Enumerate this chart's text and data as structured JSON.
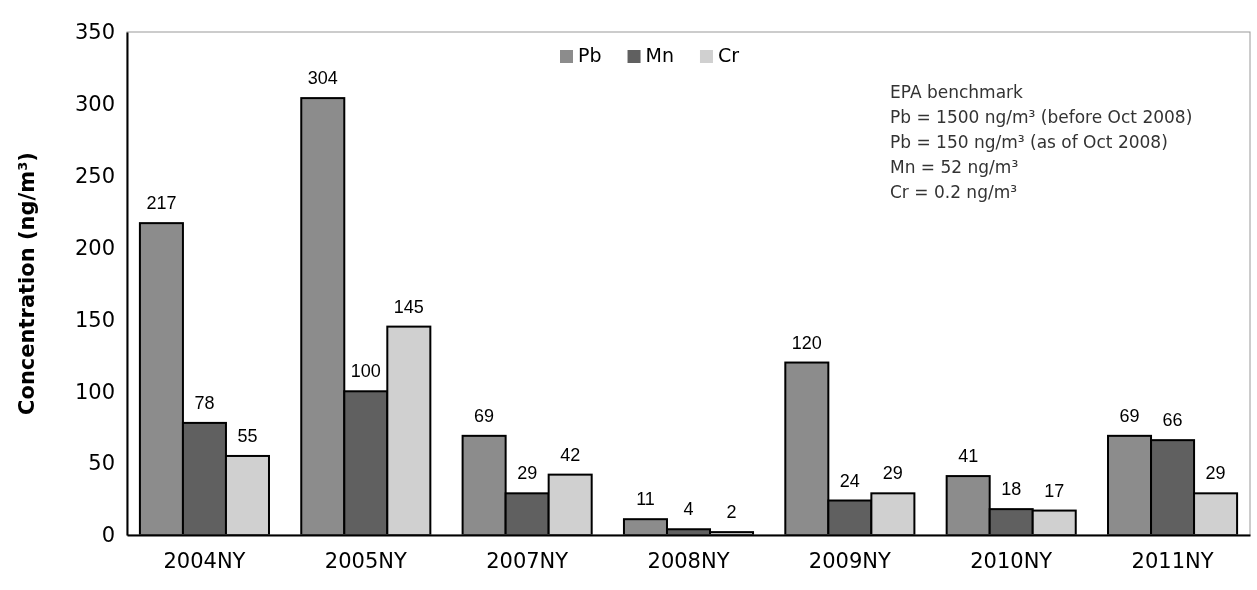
{
  "chart_data": {
    "type": "bar",
    "ylabel": "Concentration (ng/m³)",
    "categories": [
      "2004NY",
      "2005NY",
      "2007NY",
      "2008NY",
      "2009NY",
      "2010NY",
      "2011NY"
    ],
    "series": [
      {
        "name": "Pb",
        "color": "#8c8c8c",
        "values": [
          217,
          304,
          69,
          11,
          120,
          41,
          69
        ]
      },
      {
        "name": "Mn",
        "color": "#606060",
        "values": [
          78,
          100,
          29,
          4,
          24,
          18,
          66
        ]
      },
      {
        "name": "Cr",
        "color": "#d0d0d0",
        "values": [
          55,
          145,
          42,
          2,
          29,
          17,
          29
        ]
      }
    ],
    "ylim": [
      0,
      350
    ],
    "yticks": [
      0,
      50,
      100,
      150,
      200,
      250,
      300,
      350
    ],
    "data_labels": true,
    "legend": "top",
    "grid": false,
    "annotations": [
      "EPA benchmark",
      "Pb = 1500 ng/m³ (before Oct 2008)",
      "Pb = 150 ng/m³ (as of Oct 2008)",
      "Mn = 52 ng/m³",
      "Cr = 0.2 ng/m³"
    ]
  }
}
